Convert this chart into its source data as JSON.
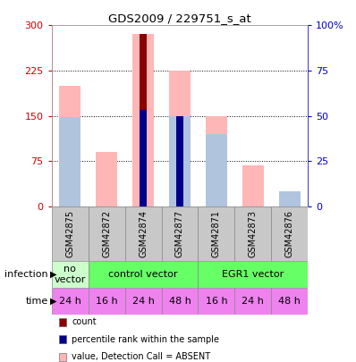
{
  "title": "GDS2009 / 229751_s_at",
  "samples": [
    "GSM42875",
    "GSM42872",
    "GSM42874",
    "GSM42877",
    "GSM42871",
    "GSM42873",
    "GSM42876"
  ],
  "count_values": [
    0,
    0,
    285,
    0,
    0,
    0,
    0
  ],
  "rank_values": [
    0,
    0,
    160,
    150,
    0,
    0,
    0
  ],
  "pink_bar_values": [
    200,
    90,
    285,
    225,
    150,
    68,
    20
  ],
  "light_blue_bar_values": [
    148,
    0,
    0,
    150,
    120,
    0,
    25
  ],
  "ylim": [
    0,
    300
  ],
  "yticks_left": [
    0,
    75,
    150,
    225,
    300
  ],
  "yticks_right": [
    0,
    25,
    50,
    75,
    100
  ],
  "time_labels": [
    "24 h",
    "16 h",
    "24 h",
    "48 h",
    "16 h",
    "24 h",
    "48 h"
  ],
  "time_color": "#ee82ee",
  "count_color": "#8b0000",
  "rank_color": "#00008b",
  "pink_color": "#ffb6b6",
  "light_blue_color": "#b0c4de",
  "sample_bg": "#c8c8c8",
  "left_axis_color": "#cc0000",
  "right_axis_color": "#0000cc",
  "no_vector_color": "#ccffcc",
  "vector_color": "#66ff66"
}
